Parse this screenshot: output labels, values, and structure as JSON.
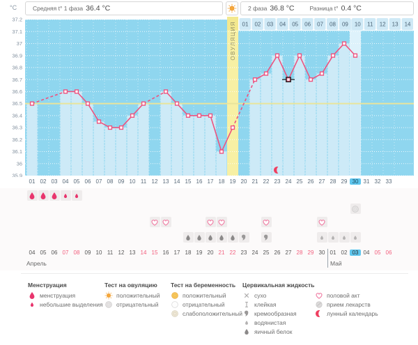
{
  "header": {
    "avg_label": "Средняя t° 1 фаза",
    "avg_value": "36.4 °C",
    "phase2_label": "2 фаза",
    "phase2_value": "36.8 °C",
    "diff_label": "Разница t°",
    "diff_value": "0.4 °C",
    "unit": "°C",
    "ovulation_header_icon": "sun-icon"
  },
  "colors": {
    "line_pink": "#ee537f",
    "fill_blue": "#cdeaf7",
    "bg_blue": "#8fd6ef",
    "band_yellow": "#f7f0a4",
    "band_yellow_top": "#f3e88e",
    "coverline_yellow": "#e9e49b",
    "today_cell_blue": "#5ec6ee",
    "today_column": "#def2fb",
    "weekend_red": "#f2607f",
    "drop_red": "#e8356d",
    "icon_gray": "#9a9898",
    "moon_red": "#ef3f60",
    "axis_text": "#8492a0"
  },
  "chart_data": {
    "type": "line",
    "title": "Basal body temperature cycle chart",
    "ylabel": "°C",
    "y_ticks": [
      "37.2",
      "37.1",
      "37",
      "36.9",
      "36.8",
      "36.7",
      "36.6",
      "36.5",
      "36.4",
      "36.3",
      "36.2",
      "36.1",
      "36",
      "35.9"
    ],
    "ylim": [
      35.9,
      37.2
    ],
    "coverline": 36.5,
    "cycle_days": [
      "01",
      "02",
      "03",
      "04",
      "05",
      "06",
      "07",
      "08",
      "09",
      "10",
      "11",
      "12",
      "13",
      "14",
      "15",
      "16",
      "17",
      "18",
      "19",
      "20",
      "21",
      "22",
      "23",
      "24",
      "25",
      "26",
      "27",
      "28",
      "29",
      "30",
      "31",
      "32",
      "33"
    ],
    "temps": [
      36.5,
      null,
      null,
      36.6,
      36.6,
      36.5,
      36.35,
      36.3,
      36.3,
      36.4,
      36.5,
      null,
      36.6,
      36.5,
      36.4,
      36.4,
      36.4,
      36.1,
      36.3,
      null,
      36.7,
      36.75,
      36.9,
      36.7,
      36.9,
      36.7,
      36.75,
      36.9,
      37.0,
      36.9,
      null,
      null,
      null
    ],
    "ovulation_day": 19,
    "ovulation_label": "ОВУЛЯЦИЯ",
    "current_day": 30,
    "dpo_labels": [
      "01",
      "02",
      "03",
      "04",
      "05",
      "06",
      "07",
      "08",
      "09",
      "10",
      "11",
      "12",
      "13",
      "14"
    ],
    "cursor": {
      "day": 24,
      "temp": 36.7
    },
    "moon_marker": {
      "day": 23,
      "icon": "crescent-moon-icon"
    }
  },
  "rows": {
    "menstruation": [
      {
        "day": 1,
        "type": "large"
      },
      {
        "day": 2,
        "type": "large"
      },
      {
        "day": 3,
        "type": "large"
      },
      {
        "day": 4,
        "type": "small"
      },
      {
        "day": 5,
        "type": "small"
      }
    ],
    "tests": [
      {
        "day": 30,
        "icon": "circle-gray"
      }
    ],
    "intimacy_days": [
      12,
      13,
      17,
      18,
      22,
      27
    ],
    "fluid": [
      {
        "day": 15,
        "type": "egg-white"
      },
      {
        "day": 16,
        "type": "egg-white"
      },
      {
        "day": 17,
        "type": "egg-white"
      },
      {
        "day": 18,
        "type": "egg-white"
      },
      {
        "day": 19,
        "type": "egg-white"
      },
      {
        "day": 20,
        "type": "creamy"
      },
      {
        "day": 22,
        "type": "creamy"
      },
      {
        "day": 27,
        "type": "watery"
      },
      {
        "day": 28,
        "type": "watery"
      },
      {
        "day": 29,
        "type": "watery"
      },
      {
        "day": 30,
        "type": "watery"
      }
    ],
    "dates": {
      "april_label": "Апрель",
      "may_label": "Май",
      "cells": [
        {
          "label": "04"
        },
        {
          "label": "05"
        },
        {
          "label": "06"
        },
        {
          "label": "07",
          "red": true
        },
        {
          "label": "08",
          "red": true
        },
        {
          "label": "09"
        },
        {
          "label": "10"
        },
        {
          "label": "11"
        },
        {
          "label": "12"
        },
        {
          "label": "13"
        },
        {
          "label": "14",
          "red": true
        },
        {
          "label": "15",
          "red": true
        },
        {
          "label": "16"
        },
        {
          "label": "17"
        },
        {
          "label": "18"
        },
        {
          "label": "19"
        },
        {
          "label": "20"
        },
        {
          "label": "21",
          "red": true
        },
        {
          "label": "22",
          "red": true
        },
        {
          "label": "23"
        },
        {
          "label": "24"
        },
        {
          "label": "25"
        },
        {
          "label": "26"
        },
        {
          "label": "27"
        },
        {
          "label": "28",
          "red": true
        },
        {
          "label": "29",
          "red": true
        },
        {
          "label": "30"
        },
        {
          "label": "01"
        },
        {
          "label": "02"
        },
        {
          "label": "03",
          "today": true
        },
        {
          "label": "04"
        },
        {
          "label": "05",
          "red": true
        },
        {
          "label": "06",
          "red": true
        }
      ],
      "may_starts_at_day": 28
    }
  },
  "legend": {
    "columns": [
      {
        "title": "Менструация",
        "items": [
          {
            "icon": "drop-large",
            "label": "менструация"
          },
          {
            "icon": "drop-small-red",
            "label": "небольшие выделения"
          }
        ]
      },
      {
        "title": "Тест на овуляцию",
        "items": [
          {
            "icon": "sun",
            "label": "положительный"
          },
          {
            "icon": "circle-gray",
            "label": "отрицательный"
          }
        ]
      },
      {
        "title": "Тест на беременность",
        "items": [
          {
            "icon": "circle-orange",
            "label": "положительный"
          },
          {
            "icon": "circle-white",
            "label": "отрицательный"
          },
          {
            "icon": "circle-pale",
            "label": "слабоположительный"
          }
        ]
      },
      {
        "title": "Цервикальная жидкость",
        "items": [
          {
            "icon": "cross",
            "label": "сухо"
          },
          {
            "icon": "sticky",
            "label": "клейкая"
          },
          {
            "icon": "creamy",
            "label": "кремообразная"
          },
          {
            "icon": "watery",
            "label": "водянистая"
          },
          {
            "icon": "egg-white",
            "label": "яичный белок"
          }
        ]
      },
      {
        "title": "",
        "items": [
          {
            "icon": "heart",
            "label": "половой акт"
          },
          {
            "icon": "pill",
            "label": "прием лекарств"
          },
          {
            "icon": "crescent",
            "label": "лунный календарь"
          }
        ]
      }
    ]
  }
}
